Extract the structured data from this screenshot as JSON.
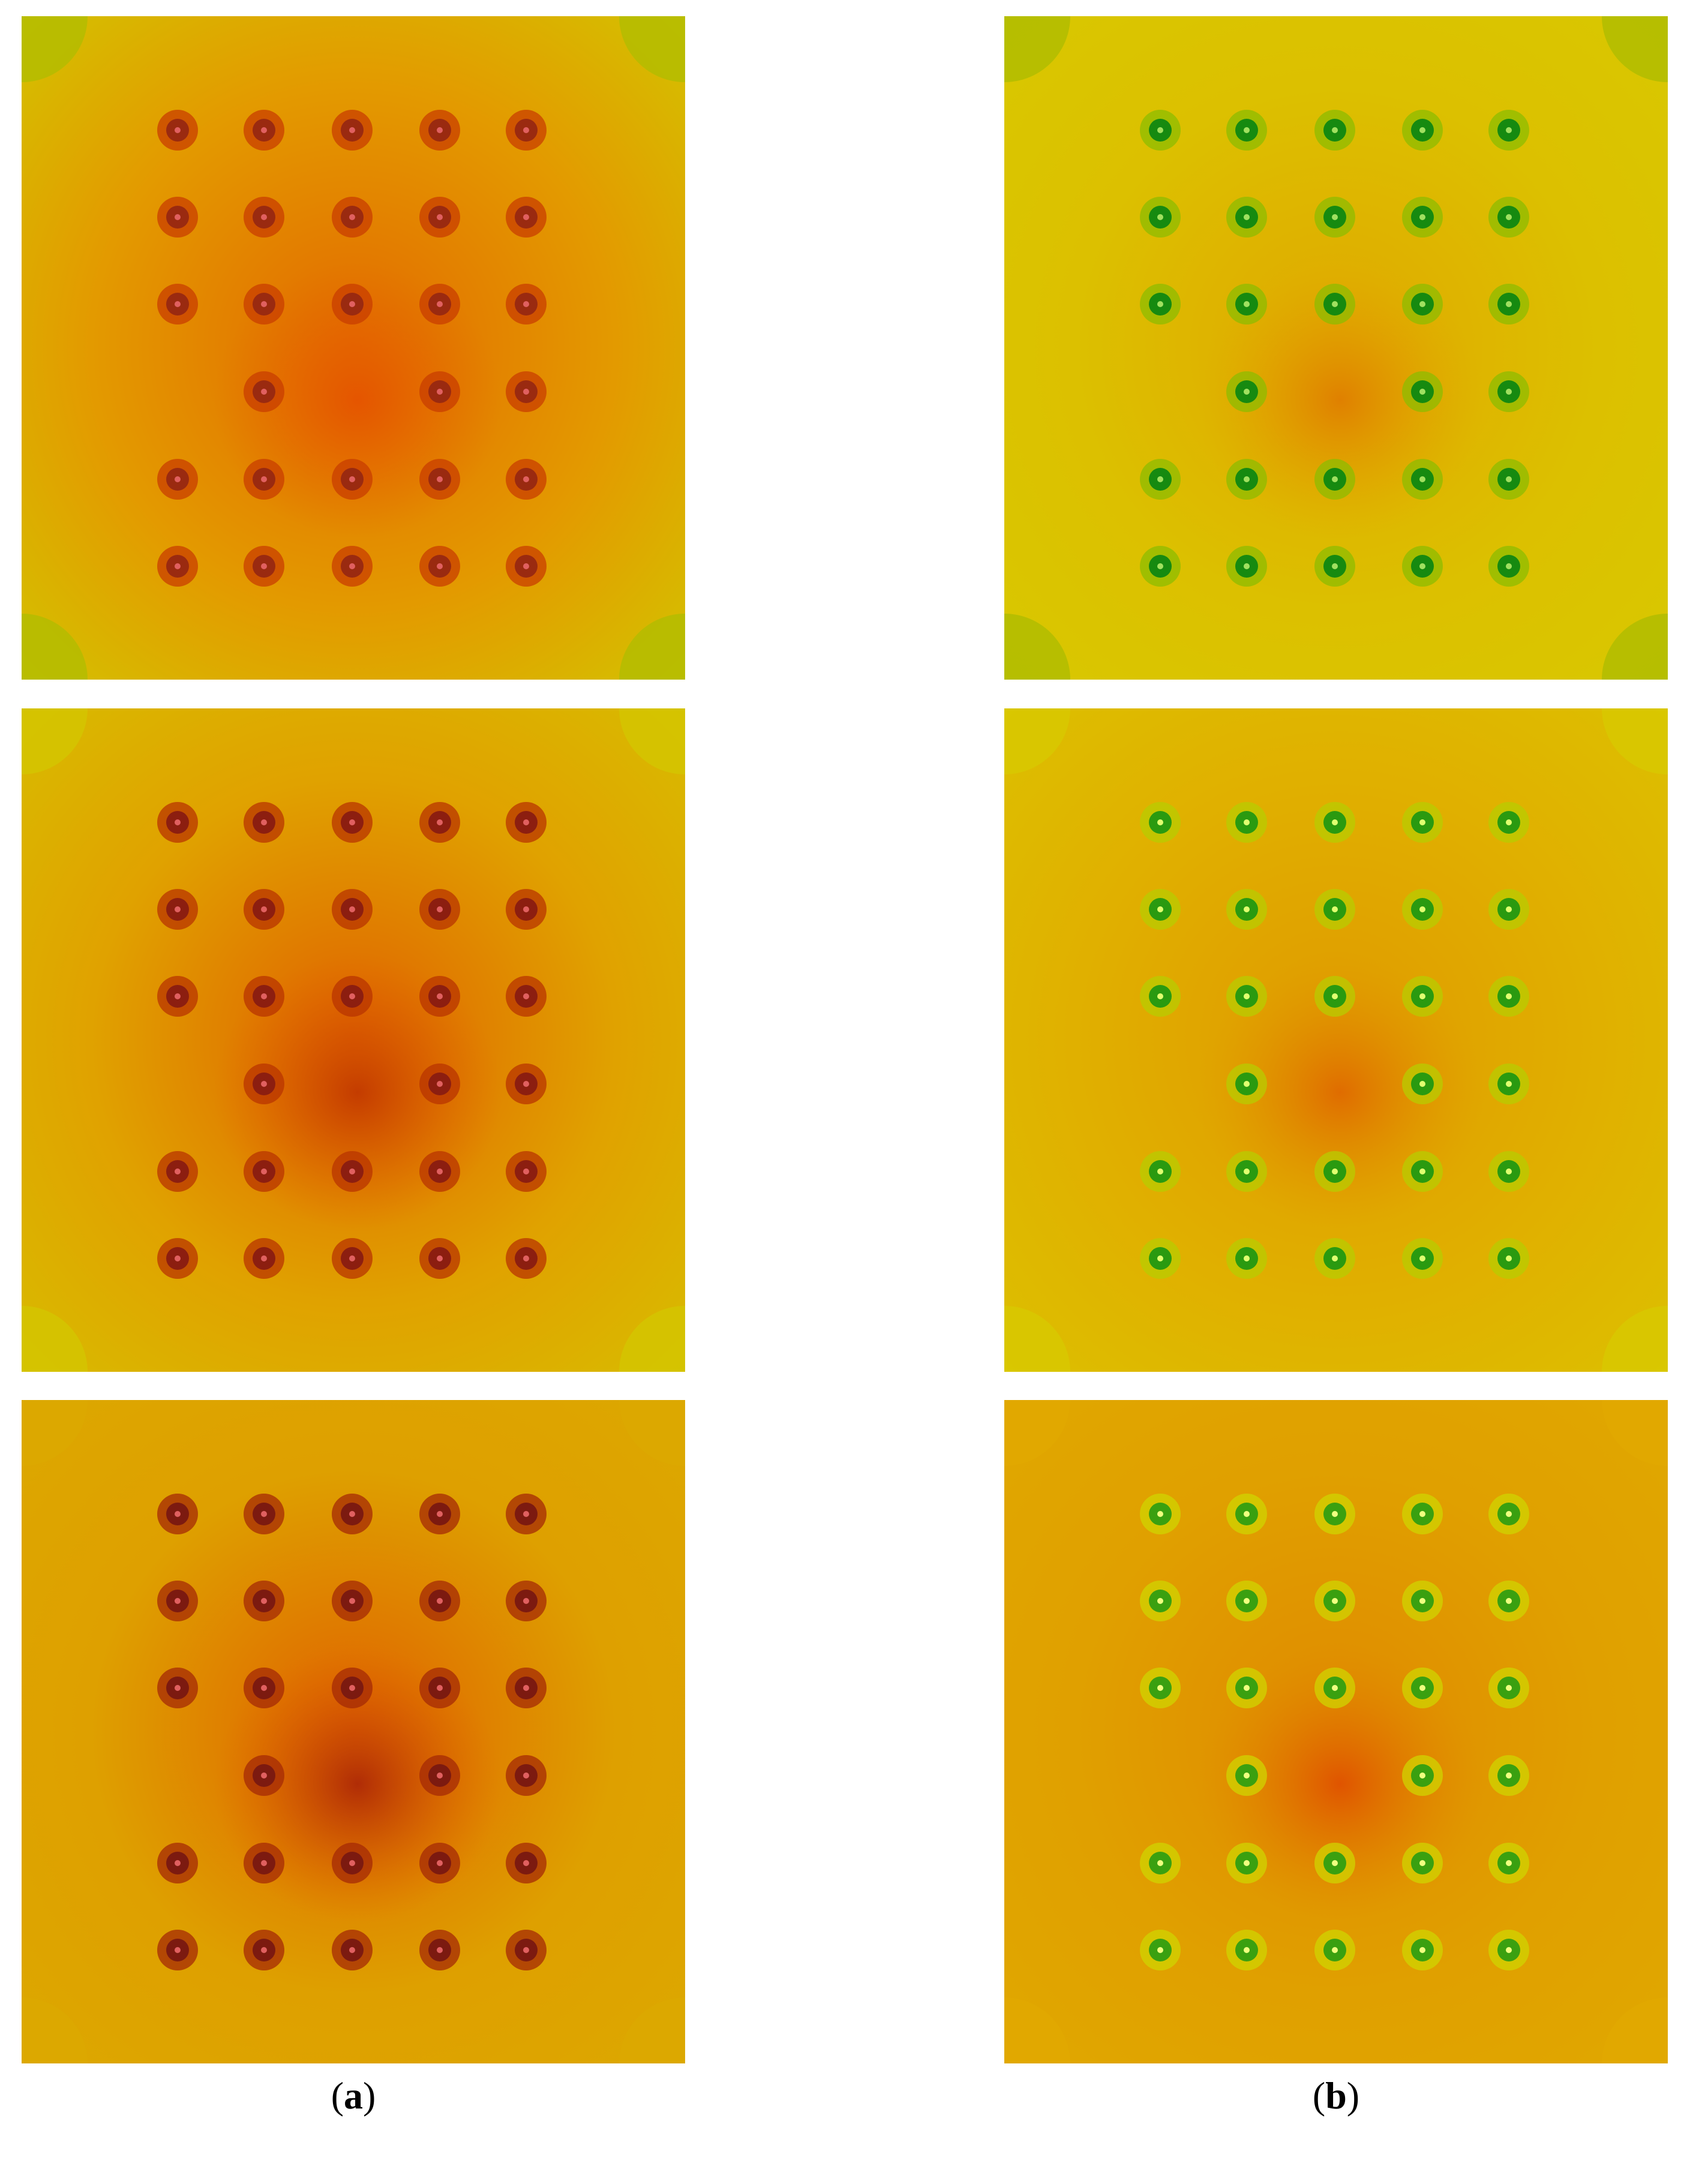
{
  "figure": {
    "captions": [
      {
        "open": "(",
        "letter": "a",
        "close": ")"
      },
      {
        "open": "(",
        "letter": "b",
        "close": ")"
      }
    ],
    "columns": [
      {
        "panels": [
          {
            "bg": "#e39a00",
            "corner": "#b4bc00",
            "edge": "#d3c400",
            "mid": "#e36a00",
            "core": "#e55500",
            "node": "#9a2a10",
            "nodeRing": "#c83e00",
            "nodeDot": "#e06060"
          },
          {
            "bg": "#e0a200",
            "corner": "#d3c400",
            "edge": "#d8bc00",
            "mid": "#e06200",
            "core": "#c43c00",
            "node": "#8c1e10",
            "nodeRing": "#b83400",
            "nodeDot": "#e06060"
          },
          {
            "bg": "#dea000",
            "corner": "#dca800",
            "edge": "#dca800",
            "mid": "#e06200",
            "core": "#b02c06",
            "node": "#7c1a10",
            "nodeRing": "#a42a06",
            "nodeDot": "#e06060"
          }
        ]
      },
      {
        "panels": [
          {
            "bg": "#dcc000",
            "corner": "#b0bc00",
            "edge": "#d8c800",
            "mid": "#e0a800",
            "core": "#e08000",
            "node": "#168a10",
            "nodeRing": "#8cbc00",
            "nodeDot": "#a0e060"
          },
          {
            "bg": "#e0b000",
            "corner": "#d8c800",
            "edge": "#dcc000",
            "mid": "#e09a00",
            "core": "#e06c00",
            "node": "#2a9a10",
            "nodeRing": "#b8cc00",
            "nodeDot": "#e0ff70"
          },
          {
            "bg": "#e0a000",
            "corner": "#e0a800",
            "edge": "#e0a800",
            "mid": "#e08a00",
            "core": "#e05400",
            "node": "#3aa010",
            "nodeRing": "#d0d400",
            "nodeDot": "#f0ff80"
          }
        ]
      }
    ]
  }
}
